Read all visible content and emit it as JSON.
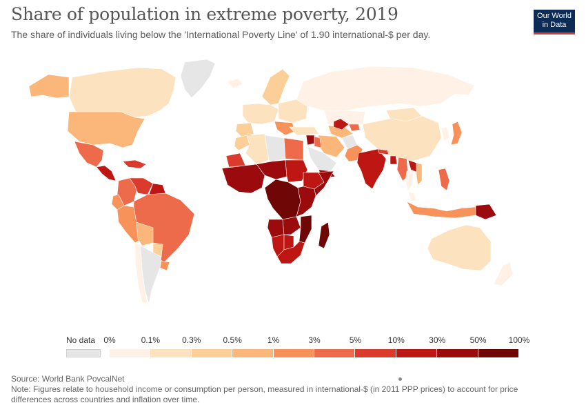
{
  "header": {
    "title": "Share of population in extreme poverty, 2019",
    "subtitle": "The share of individuals living below the 'International Poverty Line' of 1.90 international-$ per day.",
    "logo_line1": "Our World",
    "logo_line2": "in Data"
  },
  "legend": {
    "no_data_label": "No data",
    "no_data_color": "#e6e6e6",
    "ticks": [
      "0%",
      "0.1%",
      "0.3%",
      "0.5%",
      "1%",
      "3%",
      "5%",
      "10%",
      "30%",
      "50%",
      "100%"
    ],
    "colors": [
      "#fff1e6",
      "#fde2bf",
      "#fdcf98",
      "#fbb77a",
      "#f7935a",
      "#ed6a4a",
      "#db3b2d",
      "#be1713",
      "#9b0a0c",
      "#6f0707"
    ]
  },
  "map": {
    "regions": [
      {
        "name": "Greenland",
        "bin": -1
      },
      {
        "name": "Canada",
        "bin": 1
      },
      {
        "name": "Alaska",
        "bin": 3
      },
      {
        "name": "United States",
        "bin": 3
      },
      {
        "name": "Mexico",
        "bin": 5
      },
      {
        "name": "Central America",
        "bin": 7
      },
      {
        "name": "Caribbean",
        "bin": 6
      },
      {
        "name": "Colombia",
        "bin": 5
      },
      {
        "name": "Venezuela",
        "bin": 6
      },
      {
        "name": "Guyana",
        "bin": 7
      },
      {
        "name": "Ecuador",
        "bin": 4
      },
      {
        "name": "Peru",
        "bin": 4
      },
      {
        "name": "Brazil",
        "bin": 5
      },
      {
        "name": "Bolivia",
        "bin": 3
      },
      {
        "name": "Paraguay",
        "bin": 2
      },
      {
        "name": "Uruguay",
        "bin": 4
      },
      {
        "name": "Chile",
        "bin": 0
      },
      {
        "name": "Argentina",
        "bin": -1
      },
      {
        "name": "Iceland",
        "bin": 0
      },
      {
        "name": "Scandinavia",
        "bin": 2
      },
      {
        "name": "Western Europe",
        "bin": 1
      },
      {
        "name": "Iberia",
        "bin": 2
      },
      {
        "name": "Eastern Europe",
        "bin": 1
      },
      {
        "name": "Balkans",
        "bin": 4
      },
      {
        "name": "Russia",
        "bin": 0
      },
      {
        "name": "Kazakhstan",
        "bin": 0
      },
      {
        "name": "Turkey",
        "bin": 1
      },
      {
        "name": "Central Asia",
        "bin": 3
      },
      {
        "name": "Tajikistan",
        "bin": 7
      },
      {
        "name": "Kyrgyzstan",
        "bin": 5
      },
      {
        "name": "Mongolia",
        "bin": 1
      },
      {
        "name": "China",
        "bin": 1
      },
      {
        "name": "Korea",
        "bin": 0
      },
      {
        "name": "Japan",
        "bin": 4
      },
      {
        "name": "Iran",
        "bin": 3
      },
      {
        "name": "Afghanistan",
        "bin": -1
      },
      {
        "name": "Pakistan",
        "bin": 4
      },
      {
        "name": "Syria",
        "bin": 8
      },
      {
        "name": "Iraq",
        "bin": 5
      },
      {
        "name": "Saudi Arabia",
        "bin": -1
      },
      {
        "name": "Yemen",
        "bin": 8
      },
      {
        "name": "India",
        "bin": 7
      },
      {
        "name": "Nepal",
        "bin": 6
      },
      {
        "name": "Bangladesh",
        "bin": 7
      },
      {
        "name": "Myanmar",
        "bin": 5
      },
      {
        "name": "Thailand",
        "bin": 0
      },
      {
        "name": "Laos",
        "bin": 7
      },
      {
        "name": "Vietnam",
        "bin": 3
      },
      {
        "name": "Malaysia",
        "bin": 0
      },
      {
        "name": "Indonesia",
        "bin": 4
      },
      {
        "name": "Philippines",
        "bin": 5
      },
      {
        "name": "Papua New Guinea",
        "bin": 8
      },
      {
        "name": "Australia",
        "bin": 1
      },
      {
        "name": "New Zealand",
        "bin": 0
      },
      {
        "name": "Morocco",
        "bin": 2
      },
      {
        "name": "Algeria",
        "bin": 1
      },
      {
        "name": "Libya",
        "bin": -1
      },
      {
        "name": "Egypt",
        "bin": 5
      },
      {
        "name": "Mauritania",
        "bin": 6
      },
      {
        "name": "West Africa",
        "bin": 8
      },
      {
        "name": "Sahel",
        "bin": 8
      },
      {
        "name": "Sudan",
        "bin": 7
      },
      {
        "name": "Ethiopia",
        "bin": 7
      },
      {
        "name": "Somalia",
        "bin": 8
      },
      {
        "name": "Congo Basin",
        "bin": 9
      },
      {
        "name": "East Africa",
        "bin": 8
      },
      {
        "name": "Angola",
        "bin": 8
      },
      {
        "name": "Zambia",
        "bin": 8
      },
      {
        "name": "Mozambique",
        "bin": 9
      },
      {
        "name": "Namibia",
        "bin": 7
      },
      {
        "name": "Botswana",
        "bin": 7
      },
      {
        "name": "South Africa",
        "bin": 7
      },
      {
        "name": "Madagascar",
        "bin": 9
      }
    ]
  },
  "footer": {
    "source": "Source: World Bank PovcalNet",
    "note": "Note: Figures relate to household income or consumption per person, measured in international-$ (in 2011 PPP prices) to account for price differences across countries and inflation over time."
  }
}
